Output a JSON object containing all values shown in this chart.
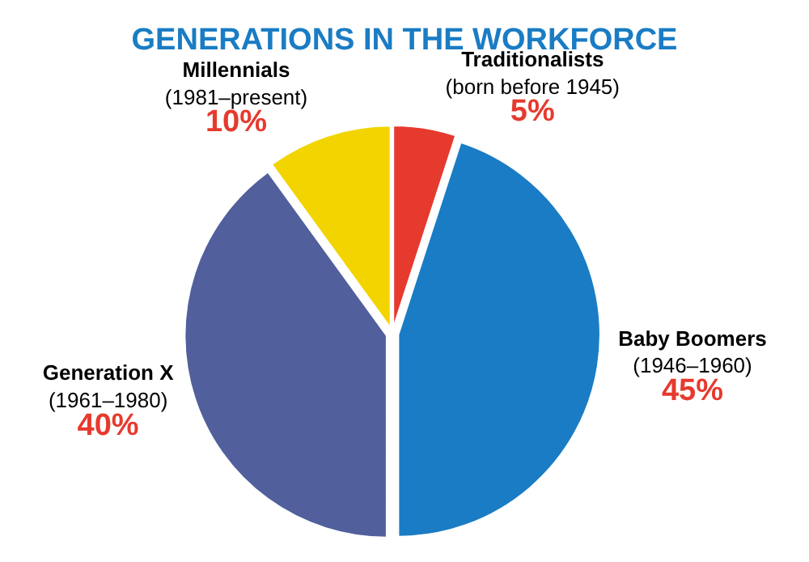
{
  "chart_data": {
    "type": "pie",
    "title": "GENERATIONS IN THE WORKFORCE",
    "categories": [
      "Traditionalists (born before 1945)",
      "Baby Boomers (1946–1960)",
      "Generation X (1961–1980)",
      "Millennials (1981–present)"
    ],
    "values": [
      5,
      45,
      40,
      10
    ],
    "colors": [
      "#e63a2e",
      "#1a7cc4",
      "#515f9c",
      "#f2d400"
    ],
    "value_labels": [
      "5%",
      "45%",
      "40%",
      "10%"
    ],
    "legend": false
  }
}
